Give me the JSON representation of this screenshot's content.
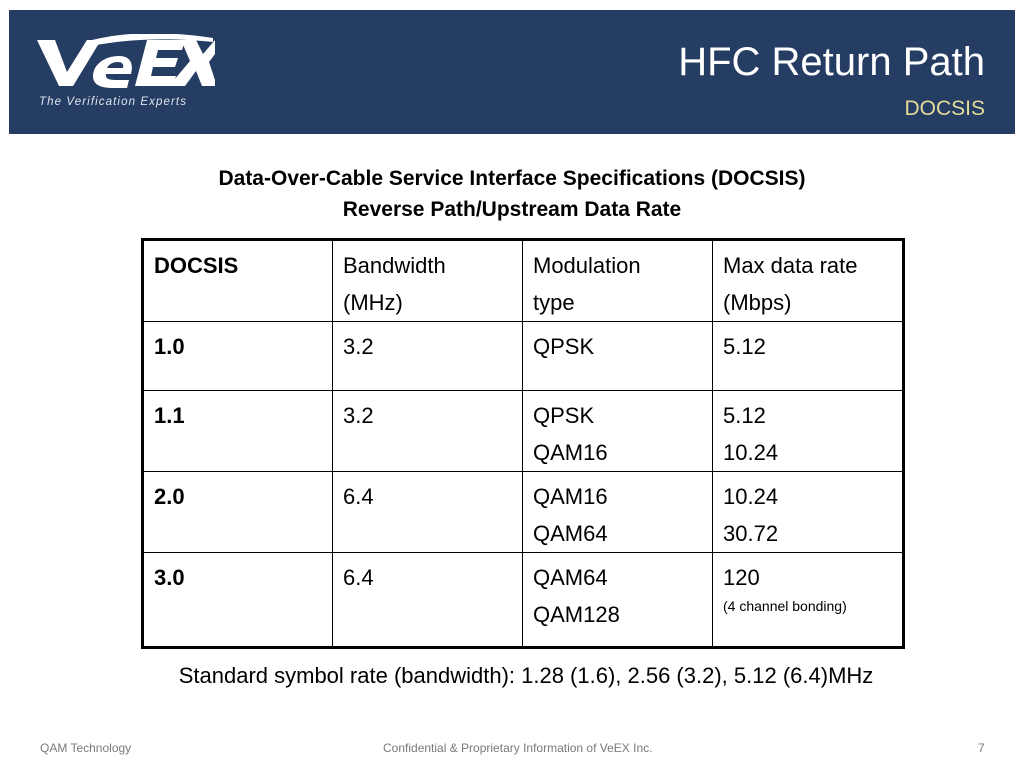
{
  "header": {
    "brand": "VeEX",
    "tagline": "The Verification Experts",
    "title": "HFC Return Path",
    "subtitle": "DOCSIS"
  },
  "table_heading": {
    "line1": "Data-Over-Cable Service Interface Specifications (DOCSIS)",
    "line2": "Reverse Path/Upstream Data Rate"
  },
  "table": {
    "columns": [
      {
        "line1": "DOCSIS",
        "line2": ""
      },
      {
        "line1": "Bandwidth",
        "line2": "(MHz)"
      },
      {
        "line1": "Modulation",
        "line2": "type"
      },
      {
        "line1": "Max data rate",
        "line2": "(Mbps)"
      }
    ],
    "rows": [
      {
        "version": "1.0",
        "bandwidth": "3.2",
        "modulation": [
          "QPSK"
        ],
        "rate": [
          "5.12"
        ],
        "note": ""
      },
      {
        "version": "1.1",
        "bandwidth": "3.2",
        "modulation": [
          "QPSK",
          "QAM16"
        ],
        "rate": [
          "5.12",
          "10.24"
        ],
        "note": ""
      },
      {
        "version": "2.0",
        "bandwidth": "6.4",
        "modulation": [
          "QAM16",
          "QAM64"
        ],
        "rate": [
          "10.24",
          "30.72"
        ],
        "note": ""
      },
      {
        "version": "3.0",
        "bandwidth": "6.4",
        "modulation": [
          "QAM64",
          "QAM128"
        ],
        "rate": [
          "120"
        ],
        "note": "(4 channel bonding)"
      }
    ]
  },
  "symbol_rate_note": "Standard symbol rate (bandwidth): 1.28 (1.6), 2.56 (3.2), 5.12 (6.4)MHz",
  "footer": {
    "left": "QAM Technology",
    "center": "Confidential & Proprietary Information of VeEX Inc.",
    "page_number": "7"
  },
  "colors": {
    "header_bg": "#263d63",
    "title": "#ffffff",
    "subtitle": "#e3dc9a",
    "footer_text": "#7a7a7a"
  }
}
